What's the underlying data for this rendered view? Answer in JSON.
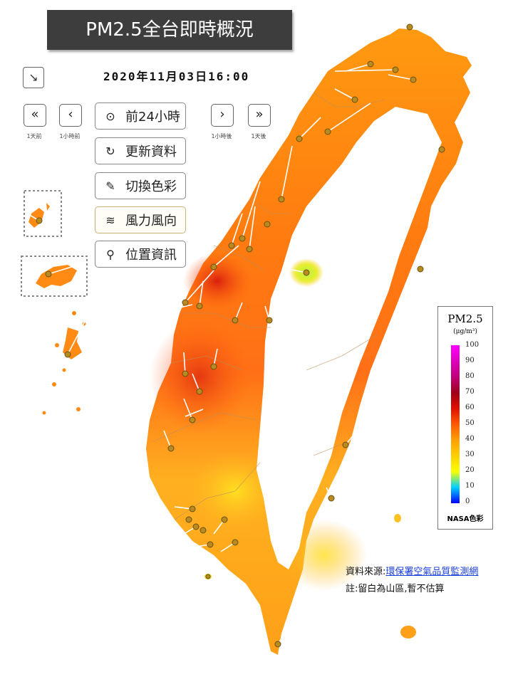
{
  "header": {
    "title": "PM2.5全台即時概況",
    "timestamp": "2020年11月03日16:00"
  },
  "controls": {
    "corner_icon": "↘",
    "nav": [
      {
        "icon": "«",
        "caption": "1天前"
      },
      {
        "icon": "‹",
        "caption": "1小時前"
      },
      {
        "icon": "›",
        "caption": "1小時後"
      },
      {
        "icon": "»",
        "caption": "1天後"
      }
    ],
    "menu": [
      {
        "icon": "⊙",
        "label": "前24小時"
      },
      {
        "icon": "↻",
        "label": "更新資料"
      },
      {
        "icon": "✎",
        "label": "切換色彩"
      },
      {
        "icon": "≋",
        "label": "風力風向"
      },
      {
        "icon": "⚲",
        "label": "位置資訊"
      }
    ]
  },
  "legend": {
    "title": "PM2.5",
    "unit": "(μg/m³)",
    "ticks": [
      "100",
      "90",
      "80",
      "70",
      "60",
      "50",
      "40",
      "30",
      "20",
      "10",
      "0"
    ],
    "footer": "NASA色彩",
    "colors": {
      "max": "#ff00ff",
      "high": "#e01000",
      "mid": "#ff8a00",
      "low": "#f8ff00",
      "min": "#0000ff"
    }
  },
  "footer": {
    "source_prefix": "資料來源:",
    "source_link": "環保署空氣品質監測網",
    "note": "註:留白為山區,暫不估算"
  }
}
